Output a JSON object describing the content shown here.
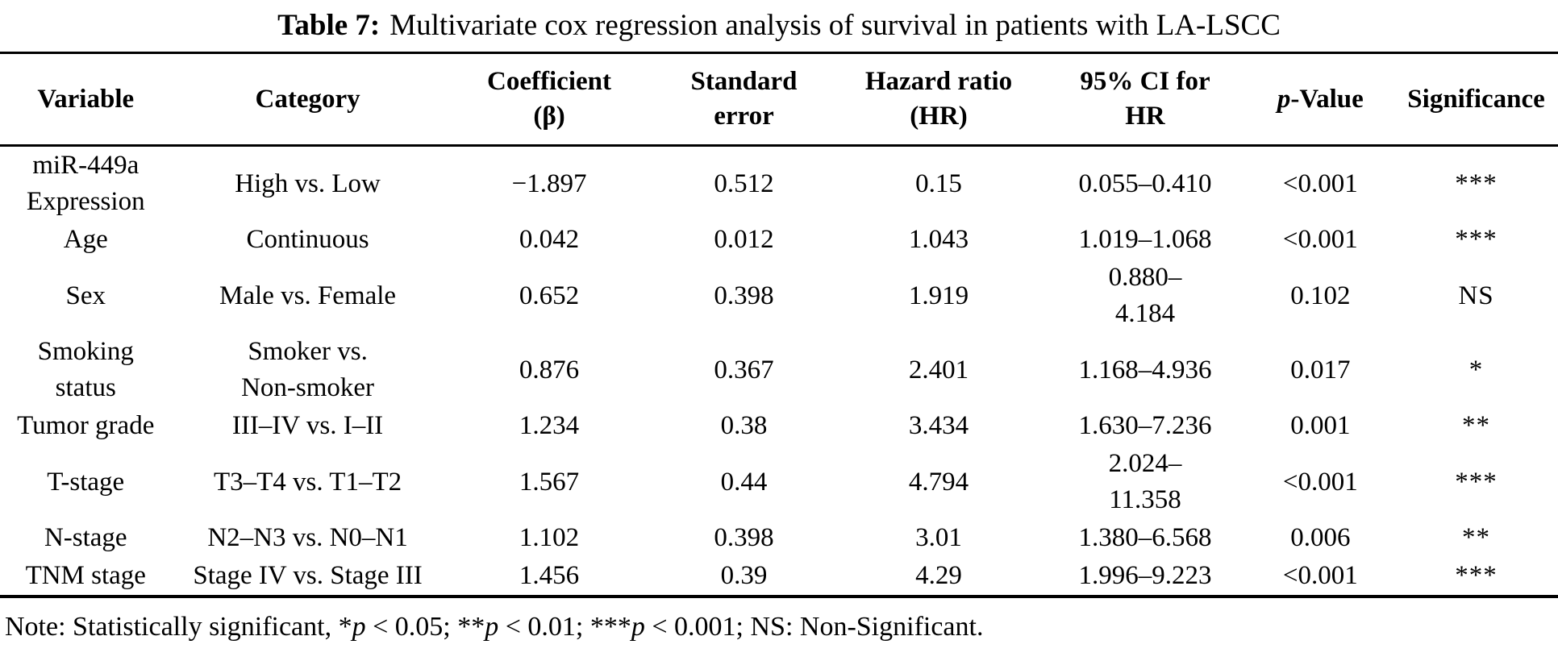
{
  "title": {
    "segments": [
      {
        "text": "Table 7:",
        "bold": true
      },
      {
        "text": "Multivariate cox regression analysis of survival in patients with LA-LSCC",
        "bold": false
      }
    ]
  },
  "table": {
    "columns": [
      {
        "key": "variable",
        "label": "Variable"
      },
      {
        "key": "category",
        "label": "Category"
      },
      {
        "key": "coefficient",
        "label": "Coefficient\n(β)"
      },
      {
        "key": "standard_error",
        "label": "Standard\nerror"
      },
      {
        "key": "hazard_ratio",
        "label": "Hazard ratio\n(HR)"
      },
      {
        "key": "ci_95",
        "label": "95% CI for\nHR"
      },
      {
        "key": "p_value",
        "label": "p-Value",
        "italic_prefix": "p"
      },
      {
        "key": "significance",
        "label": "Significance"
      }
    ],
    "rows": [
      {
        "variable": "miR-449a\nExpression",
        "category": "High vs. Low",
        "coefficient": "−1.897",
        "standard_error": "0.512",
        "hazard_ratio": "0.15",
        "ci_95": "0.055–0.410",
        "p_value": "<0.001",
        "significance": "***"
      },
      {
        "variable": "Age",
        "category": "Continuous",
        "coefficient": "0.042",
        "standard_error": "0.012",
        "hazard_ratio": "1.043",
        "ci_95": "1.019–1.068",
        "p_value": "<0.001",
        "significance": "***"
      },
      {
        "variable": "Sex",
        "category": "Male vs. Female",
        "coefficient": "0.652",
        "standard_error": "0.398",
        "hazard_ratio": "1.919",
        "ci_95": "0.880–\n4.184",
        "p_value": "0.102",
        "significance": "NS"
      },
      {
        "variable": "Smoking\nstatus",
        "category": "Smoker vs.\nNon-smoker",
        "coefficient": "0.876",
        "standard_error": "0.367",
        "hazard_ratio": "2.401",
        "ci_95": "1.168–4.936",
        "p_value": "0.017",
        "significance": "*"
      },
      {
        "variable": "Tumor grade",
        "category": "III–IV vs. I–II",
        "coefficient": "1.234",
        "standard_error": "0.38",
        "hazard_ratio": "3.434",
        "ci_95": "1.630–7.236",
        "p_value": "0.001",
        "significance": "**"
      },
      {
        "variable": "T-stage",
        "category": "T3–T4 vs. T1–T2",
        "coefficient": "1.567",
        "standard_error": "0.44",
        "hazard_ratio": "4.794",
        "ci_95": "2.024–\n11.358",
        "p_value": "<0.001",
        "significance": "***"
      },
      {
        "variable": "N-stage",
        "category": "N2–N3 vs. N0–N1",
        "coefficient": "1.102",
        "standard_error": "0.398",
        "hazard_ratio": "3.01",
        "ci_95": "1.380–6.568",
        "p_value": "0.006",
        "significance": "**"
      },
      {
        "variable": "TNM stage",
        "category": "Stage IV vs. Stage III",
        "coefficient": "1.456",
        "standard_error": "0.39",
        "hazard_ratio": "4.29",
        "ci_95": "1.996–9.223",
        "p_value": "<0.001",
        "significance": "***"
      }
    ]
  },
  "note": {
    "segments": [
      {
        "text": "Note: Statistically significant, "
      },
      {
        "text": "*"
      },
      {
        "text": "p",
        "italic": true
      },
      {
        "text": " < 0.05; "
      },
      {
        "text": "**"
      },
      {
        "text": "p",
        "italic": true
      },
      {
        "text": " < 0.01; "
      },
      {
        "text": "***"
      },
      {
        "text": "p",
        "italic": true
      },
      {
        "text": " < 0.001; NS: Non-Significant."
      }
    ]
  }
}
